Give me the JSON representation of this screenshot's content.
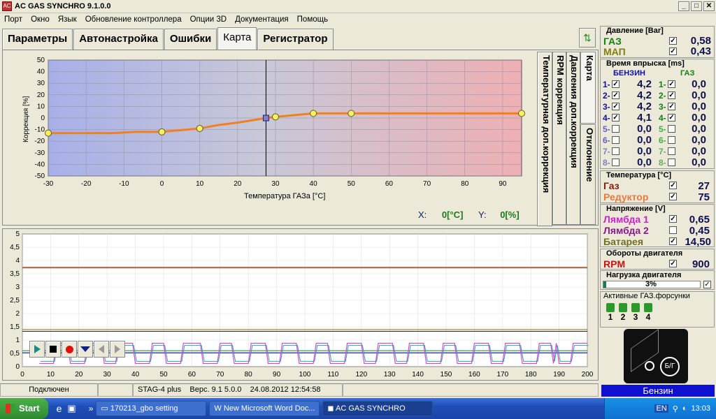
{
  "window": {
    "title": "AC GAS SYNCHRO  9.1.0.0"
  },
  "menu": [
    "Порт",
    "Окно",
    "Язык",
    "Обновление контроллера",
    "Опции 3D",
    "Документация",
    "Помощь"
  ],
  "tabs": [
    "Параметры",
    "Автонастройка",
    "Ошибки",
    "Карта",
    "Регистратор"
  ],
  "active_tab": "Карта",
  "vertical_tabs": [
    "Температурная доп.коррекция",
    "RPM коррекция",
    "Давления доп.коррекция",
    "Карта",
    "Отклонение"
  ],
  "map_chart": {
    "ylabel": "Коррекция [%]",
    "xlabel": "Температура ГАЗа [°C]",
    "xlim": [
      -30,
      95
    ],
    "ylim": [
      -50,
      50
    ],
    "xticks": [
      -30,
      -20,
      -10,
      0,
      10,
      20,
      30,
      40,
      50,
      60,
      70,
      80,
      90
    ],
    "yticks": [
      50,
      40,
      30,
      20,
      10,
      0,
      -10,
      -20,
      -30,
      -40,
      -50
    ],
    "cursor_x": 27.5,
    "line_x": [
      -30,
      -13,
      -7,
      0,
      3,
      10,
      15,
      20,
      27.5,
      30,
      40,
      50,
      95
    ],
    "line_y": [
      -13,
      -13,
      -12,
      -12,
      -11,
      -9,
      -6,
      -4,
      0,
      1,
      4,
      4,
      4
    ],
    "points_x": [
      -30,
      0,
      10,
      27.5,
      30,
      40,
      50,
      95
    ],
    "points_y": [
      -13,
      -12,
      -9,
      0,
      1,
      4,
      4,
      4
    ],
    "selected_point_x": 27.5
  },
  "xy_readout": {
    "x_label": "X:",
    "x_value": "0[°C]",
    "y_label": "Y:",
    "y_value": "0[%]"
  },
  "recorder_chart": {
    "yticks": [
      "5",
      "4,5",
      "4",
      "3,5",
      "3",
      "2,5",
      "2",
      "1,5",
      "1",
      "0,5",
      "0"
    ],
    "xticks": [
      0,
      10,
      20,
      30,
      40,
      50,
      60,
      70,
      80,
      90,
      100,
      110,
      120,
      130,
      140,
      150,
      160,
      170,
      180,
      190,
      200
    ],
    "xlim": [
      0,
      200
    ],
    "ylim": [
      0,
      5
    ]
  },
  "status": {
    "connection": "Подключен",
    "ecu": "STAG-4 plus",
    "version": "Верс. 9.1  5.0.0",
    "datetime": "24.08.2012 12:54:58"
  },
  "pressure": {
    "title": "Давление [Bar]",
    "gas_label": "ГАЗ",
    "gas_value": "0,58",
    "map_label": "МАП",
    "map_value": "0,43"
  },
  "injection": {
    "title": "Время впрыска [ms]",
    "petrol_header": "БЕНЗИН",
    "gas_header": "ГАЗ",
    "rows": [
      {
        "n": "1-",
        "petrol": "4,2",
        "petrol_on": true,
        "gas": "0,0",
        "gas_on": true
      },
      {
        "n": "2-",
        "petrol": "4,2",
        "petrol_on": true,
        "gas": "0,0",
        "gas_on": true
      },
      {
        "n": "3-",
        "petrol": "4,2",
        "petrol_on": true,
        "gas": "0,0",
        "gas_on": true
      },
      {
        "n": "4-",
        "petrol": "4,1",
        "petrol_on": true,
        "gas": "0,0",
        "gas_on": true
      },
      {
        "n": "5-",
        "petrol": "0,0",
        "petrol_on": false,
        "gas": "0,0",
        "gas_on": false
      },
      {
        "n": "6-",
        "petrol": "0,0",
        "petrol_on": false,
        "gas": "0,0",
        "gas_on": false
      },
      {
        "n": "7-",
        "petrol": "0,0",
        "petrol_on": false,
        "gas": "0,0",
        "gas_on": false
      },
      {
        "n": "8-",
        "petrol": "0,0",
        "petrol_on": false,
        "gas": "0,0",
        "gas_on": false
      }
    ]
  },
  "temperature": {
    "title": "Температура  [°C]",
    "gas_label": "Газ",
    "gas_value": "27",
    "reducer_label": "Редуктор",
    "reducer_value": "75"
  },
  "voltage": {
    "title": "Напряжение [V]",
    "lambda1_label": "Лямбда 1",
    "lambda1_value": "0,65",
    "lambda2_label": "Лямбда 2",
    "lambda2_value": "0,45",
    "battery_label": "Батарея",
    "battery_value": "14,50"
  },
  "rpm": {
    "title": "Обороты двигателя",
    "label": "RPM",
    "value": "900"
  },
  "load": {
    "title": "Нагрузка двигателя",
    "value": "3%",
    "fraction": 0.03
  },
  "active_injectors": {
    "title": "Активные ГАЗ.форсунки",
    "labels": [
      "1",
      "2",
      "3",
      "4"
    ]
  },
  "switch": {
    "label": "Б/Г",
    "fuel_status": "Бензин"
  },
  "taskbar": {
    "start": "Start",
    "tasks": [
      "170213_gbo setting",
      "New Microsoft Word Doc...",
      "AC GAS SYNCHRO"
    ],
    "lang": "EN",
    "clock": "13:03"
  },
  "colors": {
    "accent": "#e87a20",
    "petrol": "#1010a0",
    "gas": "#108010",
    "lambda1": "#d020d0",
    "lambda2": "#8a1a8a",
    "battery": "#707020"
  }
}
